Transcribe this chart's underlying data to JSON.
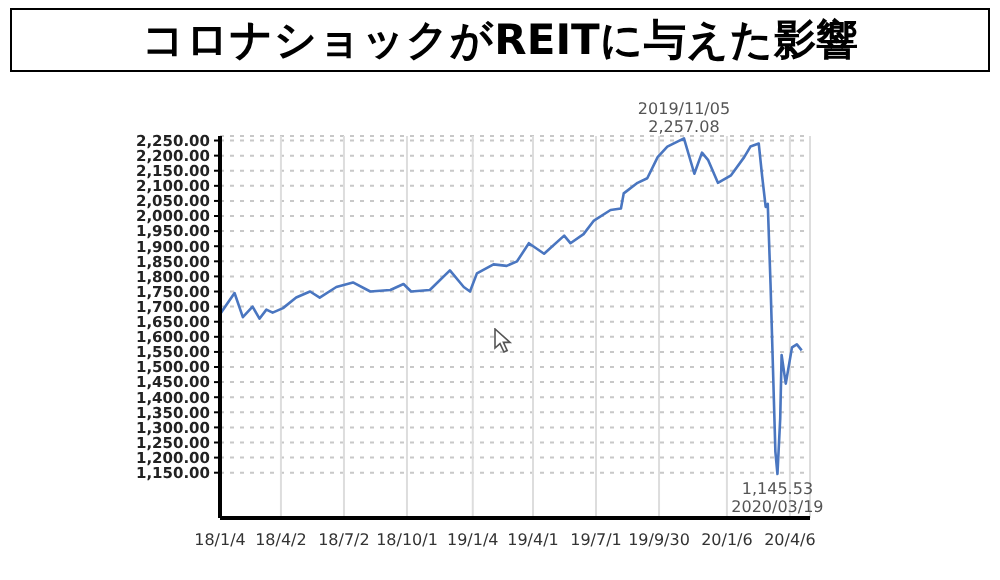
{
  "chart_data": {
    "type": "line",
    "title": "コロナショックがREITに与えた影響",
    "x": [
      "2018-01-04",
      "2018-01-25",
      "2018-02-06",
      "2018-02-20",
      "2018-03-02",
      "2018-03-12",
      "2018-03-21",
      "2018-04-05",
      "2018-04-24",
      "2018-05-14",
      "2018-05-28",
      "2018-06-21",
      "2018-07-15",
      "2018-08-09",
      "2018-09-07",
      "2018-09-26",
      "2018-10-07",
      "2018-11-03",
      "2018-12-02",
      "2018-12-22",
      "2018-12-31",
      "2019-01-10",
      "2019-02-03",
      "2019-02-22",
      "2019-03-09",
      "2019-03-26",
      "2019-04-17",
      "2019-05-16",
      "2019-05-25",
      "2019-06-13",
      "2019-06-28",
      "2019-07-22",
      "2019-08-06",
      "2019-08-10",
      "2019-08-30",
      "2019-09-13",
      "2019-09-28",
      "2019-10-12",
      "2019-11-05",
      "2019-11-20",
      "2019-12-01",
      "2019-12-10",
      "2019-12-24",
      "2020-01-12",
      "2020-01-31",
      "2020-02-09",
      "2020-02-21",
      "2020-02-26",
      "2020-03-02",
      "2020-03-05",
      "2020-03-09",
      "2020-03-16",
      "2020-03-19",
      "2020-03-23",
      "2020-03-25",
      "2020-03-31",
      "2020-04-09",
      "2020-04-16",
      "2020-04-23"
    ],
    "series": [
      {
        "color": "#4a76c0",
        "values": [
          1675,
          1745,
          1665,
          1700,
          1660,
          1690,
          1680,
          1695,
          1730,
          1750,
          1730,
          1765,
          1780,
          1750,
          1755,
          1775,
          1750,
          1755,
          1820,
          1765,
          1750,
          1810,
          1840,
          1835,
          1850,
          1910,
          1875,
          1935,
          1910,
          1940,
          1985,
          2020,
          2025,
          2075,
          2110,
          2125,
          2195,
          2230,
          2257.08,
          2140,
          2210,
          2185,
          2110,
          2135,
          2195,
          2230,
          2240,
          2130,
          2030,
          2040,
          1775,
          1220,
          1145.53,
          1330,
          1540,
          1445,
          1565,
          1575,
          1555
        ]
      }
    ],
    "xlim": [
      "2018-01-04",
      "2020-05-05"
    ],
    "xticks": [
      {
        "value": "2018-01-04",
        "label": "18/1/4"
      },
      {
        "value": "2018-04-02",
        "label": "18/4/2"
      },
      {
        "value": "2018-07-02",
        "label": "18/7/2"
      },
      {
        "value": "2018-10-01",
        "label": "18/10/1"
      },
      {
        "value": "2019-01-04",
        "label": "19/1/4"
      },
      {
        "value": "2019-04-01",
        "label": "19/4/1"
      },
      {
        "value": "2019-07-01",
        "label": "19/7/1"
      },
      {
        "value": "2019-09-30",
        "label": "19/9/30"
      },
      {
        "value": "2020-01-06",
        "label": "20/1/6"
      },
      {
        "value": "2020-04-06",
        "label": "20/4/6"
      }
    ],
    "ylim": [
      1000,
      2265
    ],
    "yticks": [
      {
        "value": 1150,
        "label": "1,150.00"
      },
      {
        "value": 1200,
        "label": "1,200.00"
      },
      {
        "value": 1250,
        "label": "1,250.00"
      },
      {
        "value": 1300,
        "label": "1,300.00"
      },
      {
        "value": 1350,
        "label": "1,350.00"
      },
      {
        "value": 1400,
        "label": "1,400.00"
      },
      {
        "value": 1450,
        "label": "1,450.00"
      },
      {
        "value": 1500,
        "label": "1,500.00"
      },
      {
        "value": 1550,
        "label": "1,550.00"
      },
      {
        "value": 1600,
        "label": "1,600.00"
      },
      {
        "value": 1650,
        "label": "1,650.00"
      },
      {
        "value": 1700,
        "label": "1,700.00"
      },
      {
        "value": 1750,
        "label": "1,750.00"
      },
      {
        "value": 1800,
        "label": "1,800.00"
      },
      {
        "value": 1850,
        "label": "1,850.00"
      },
      {
        "value": 1900,
        "label": "1,900.00"
      },
      {
        "value": 1950,
        "label": "1,950.00"
      },
      {
        "value": 2000,
        "label": "2,000.00"
      },
      {
        "value": 2050,
        "label": "2,050.00"
      },
      {
        "value": 2100,
        "label": "2,100.00"
      },
      {
        "value": 2150,
        "label": "2,150.00"
      },
      {
        "value": 2200,
        "label": "2,200.00"
      },
      {
        "value": 2250,
        "label": "2,250.00"
      }
    ],
    "grid": true,
    "annotations": [
      {
        "text": "2019/11/05",
        "x": "2019-11-05",
        "y": 2257.08
      },
      {
        "text": "2,257.08",
        "x": "2019-11-05",
        "y": 2257.08
      },
      {
        "text": "1,145.53",
        "x": "2020-03-19",
        "y": 1145.53
      },
      {
        "text": "2020/03/19",
        "x": "2020-03-19",
        "y": 1145.53
      }
    ]
  }
}
